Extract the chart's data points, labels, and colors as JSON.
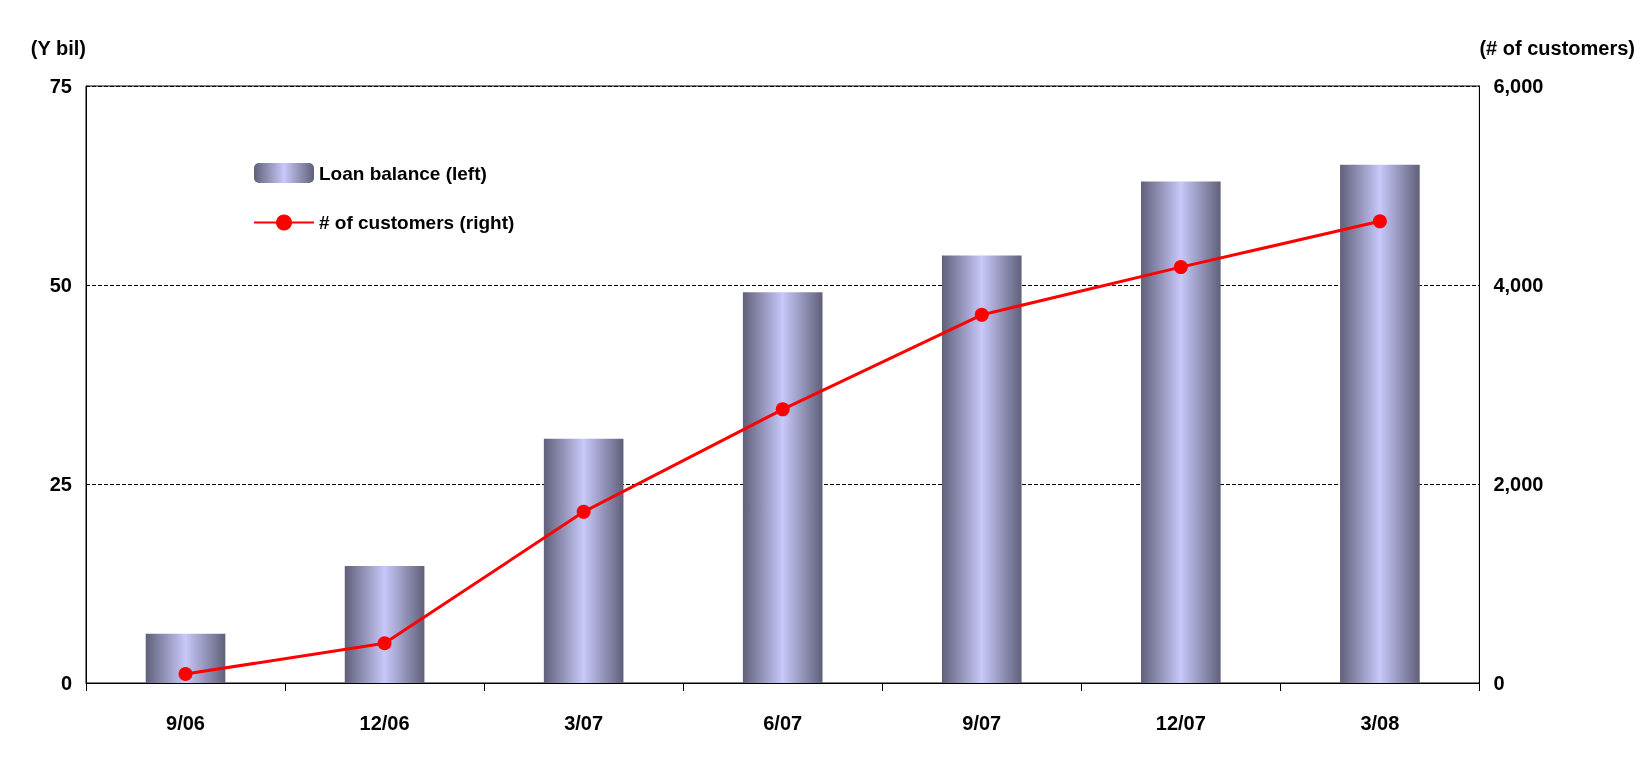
{
  "chart_data": {
    "type": "bar",
    "ylabel": "(Y bil)",
    "y2label": "(# of customers)",
    "categories": [
      "9/06",
      "12/06",
      "3/07",
      "6/07",
      "9/07",
      "12/07",
      "3/08"
    ],
    "series": [
      {
        "name": "Loan balance (left)",
        "color": "#c8c8fa",
        "values": [
          6.2,
          14.7,
          30.7,
          49.1,
          53.7,
          63.0,
          65.1
        ]
      },
      {
        "name": "# of customers (right)",
        "type": "line",
        "axis": "y2",
        "color": "#ff0000",
        "marker": "circle",
        "values": [
          90,
          400,
          1720,
          2750,
          3700,
          4180,
          4640
        ]
      }
    ],
    "ylim": [
      0,
      75
    ],
    "yticks": [
      0,
      25,
      50,
      75
    ],
    "y2lim": [
      0,
      6000
    ],
    "y2ticks": [
      0,
      {
        "value": 2000,
        "label": "2,000"
      },
      {
        "value": 4000,
        "label": "4,000"
      },
      {
        "value": 6000,
        "label": "6,000"
      }
    ],
    "grid": "y",
    "legend": "top left"
  }
}
